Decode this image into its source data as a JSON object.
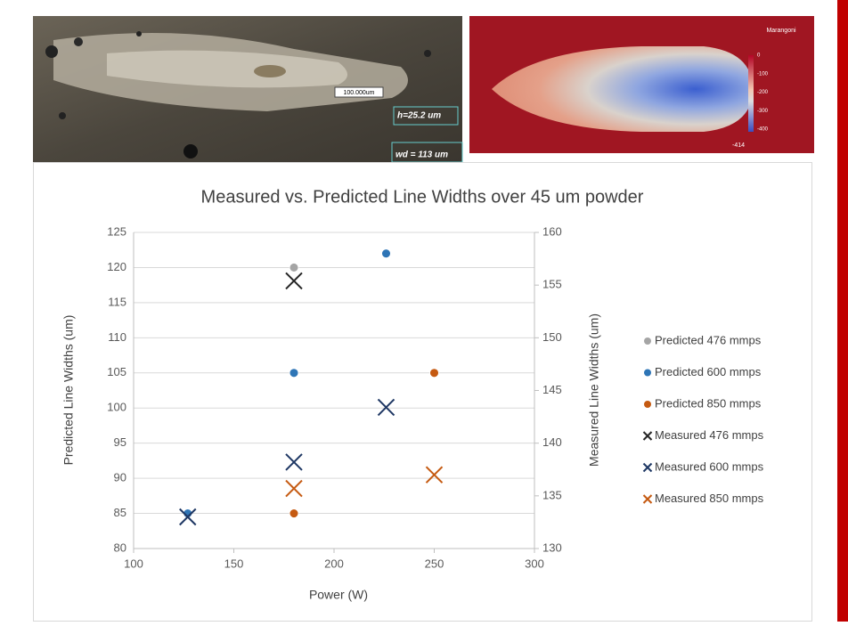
{
  "micrograph": {
    "scale_label": "100.000um",
    "height_label": "h=25.2 um",
    "width_label": "wd = 113 um"
  },
  "simulation": {
    "title": "Marangoni",
    "colorbar_ticks": [
      0,
      -100,
      -200,
      -300,
      -400
    ],
    "colorbar_min": -414
  },
  "chart_data": {
    "type": "scatter",
    "title": "Measured vs. Predicted Line Widths over 45 um powder",
    "x_label": "Power (W)",
    "y_label": "Predicted Line Widths (um)",
    "y2_label": "Measured Line Widths (um)",
    "xlim": [
      100,
      300
    ],
    "xticks": [
      100,
      150,
      200,
      250,
      300
    ],
    "ylim": [
      80,
      125
    ],
    "yticks": [
      80,
      85,
      90,
      95,
      100,
      105,
      110,
      115,
      120,
      125
    ],
    "y2lim": [
      130,
      160
    ],
    "y2ticks": [
      130,
      135,
      140,
      145,
      150,
      155,
      160
    ],
    "grid": true,
    "legend": "right",
    "series": [
      {
        "name": "Predicted 476 mmps",
        "color": "#a5a5a5",
        "marker": "circle",
        "x": [
          180
        ],
        "values": [
          120
        ]
      },
      {
        "name": "Predicted 600 mmps",
        "color": "#2e75b6",
        "marker": "circle",
        "x": [
          127,
          180,
          226
        ],
        "values": [
          85,
          105,
          122
        ]
      },
      {
        "name": "Predicted 850 mmps",
        "color": "#c55a11",
        "marker": "circle",
        "x": [
          180,
          250
        ],
        "values": [
          85,
          105
        ]
      },
      {
        "name": "Measured 476 mmps",
        "color": "#262626",
        "marker": "x",
        "axis": "y2",
        "x": [
          180
        ],
        "values": [
          155.4
        ]
      },
      {
        "name": "Measured 600 mmps",
        "color": "#1f3864",
        "marker": "x",
        "axis": "y2",
        "x": [
          127,
          180,
          226
        ],
        "values": [
          133,
          138.2,
          143.4
        ]
      },
      {
        "name": "Measured 850 mmps",
        "color": "#c55a11",
        "marker": "x",
        "axis": "y2",
        "x": [
          180,
          250
        ],
        "values": [
          135.7,
          137
        ]
      }
    ]
  }
}
